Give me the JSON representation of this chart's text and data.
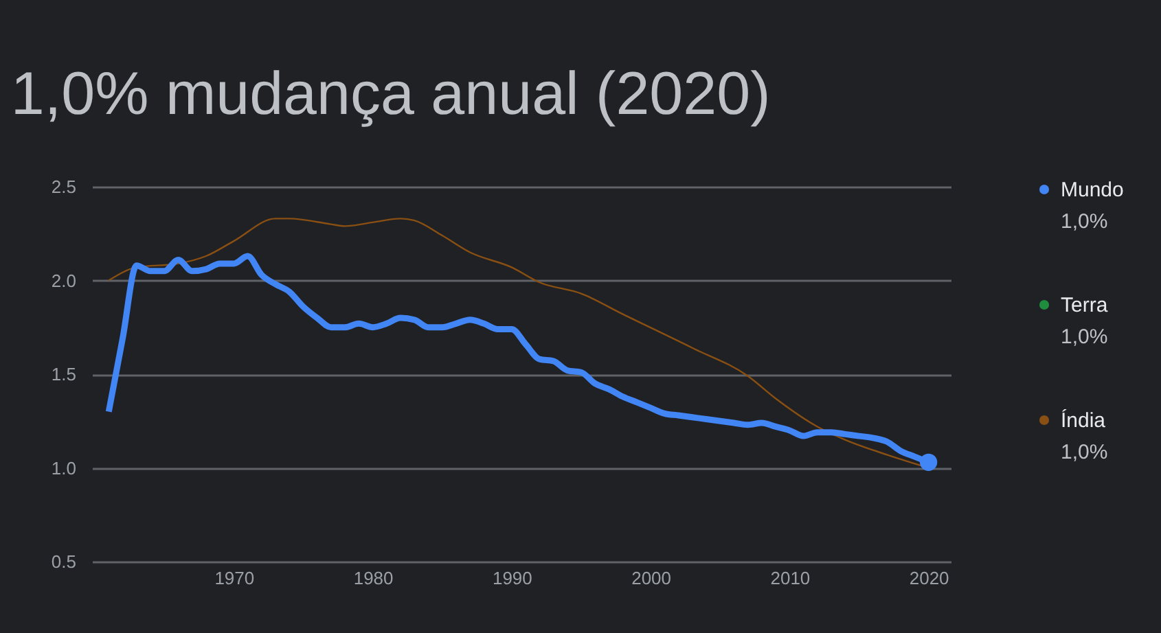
{
  "chart_data": {
    "type": "line",
    "title": "1,0% mudança anual (2020)",
    "x": [
      1961,
      1962,
      1963,
      1964,
      1965,
      1966,
      1967,
      1968,
      1969,
      1970,
      1971,
      1972,
      1973,
      1974,
      1975,
      1976,
      1977,
      1978,
      1979,
      1980,
      1981,
      1982,
      1983,
      1984,
      1985,
      1986,
      1987,
      1988,
      1989,
      1990,
      1991,
      1992,
      1993,
      1994,
      1995,
      1996,
      1997,
      1998,
      1999,
      2000,
      2001,
      2002,
      2003,
      2004,
      2005,
      2006,
      2007,
      2008,
      2009,
      2010,
      2011,
      2012,
      2013,
      2014,
      2015,
      2016,
      2017,
      2018,
      2019,
      2020
    ],
    "series": [
      {
        "name": "Mundo",
        "color": "#4285f4",
        "values": [
          1.3,
          1.69,
          2.08,
          2.05,
          2.05,
          2.11,
          2.05,
          2.06,
          2.09,
          2.09,
          2.13,
          2.03,
          1.98,
          1.94,
          1.86,
          1.8,
          1.75,
          1.75,
          1.77,
          1.75,
          1.77,
          1.8,
          1.79,
          1.75,
          1.75,
          1.77,
          1.79,
          1.77,
          1.74,
          1.74,
          1.66,
          1.58,
          1.57,
          1.52,
          1.51,
          1.45,
          1.42,
          1.38,
          1.35,
          1.32,
          1.29,
          1.28,
          1.27,
          1.26,
          1.25,
          1.24,
          1.23,
          1.24,
          1.22,
          1.2,
          1.17,
          1.19,
          1.19,
          1.18,
          1.17,
          1.16,
          1.14,
          1.09,
          1.06,
          1.03
        ]
      },
      {
        "name": "Terra",
        "color": "#1e8e3e",
        "values": [
          null,
          null,
          null,
          null,
          null,
          null,
          null,
          null,
          null,
          null,
          null,
          null,
          null,
          null,
          null,
          null,
          null,
          null,
          null,
          null,
          null,
          null,
          null,
          null,
          null,
          null,
          null,
          null,
          null,
          null,
          null,
          null,
          null,
          null,
          null,
          null,
          null,
          null,
          null,
          null,
          null,
          null,
          null,
          null,
          null,
          null,
          null,
          null,
          null,
          null,
          null,
          null,
          null,
          null,
          null,
          null,
          null,
          null,
          null,
          null
        ]
      },
      {
        "name": "Índia",
        "color": "#8a4f12",
        "x": [
          1961,
          1963,
          1966,
          1968,
          1970,
          1973,
          1974,
          1977,
          1978,
          1980,
          1982,
          1983,
          1985,
          1987,
          1990,
          1992,
          1995,
          1998,
          2003,
          2007,
          2009,
          2012,
          2014,
          2017,
          2020
        ],
        "values": [
          2.0,
          2.07,
          2.09,
          2.13,
          2.21,
          2.33,
          2.33,
          2.3,
          2.29,
          2.31,
          2.33,
          2.32,
          2.24,
          2.15,
          2.07,
          1.99,
          1.93,
          1.82,
          1.64,
          1.49,
          1.37,
          1.22,
          1.15,
          1.07,
          1.0
        ]
      }
    ],
    "annotations": [
      "1,0%",
      "1,0%",
      "1,0%"
    ],
    "xlim": [
      1959.8,
      2021.6
    ],
    "xticks": [
      1970,
      1980,
      1990,
      2000,
      2010,
      2020
    ],
    "ylim": [
      0.5,
      2.5
    ],
    "yticks": [
      0.5,
      {
        "value": 1,
        "label": "1.0"
      },
      1.5,
      {
        "value": 2,
        "label": "2.0"
      },
      2.5
    ],
    "grid": "y",
    "legend": "right"
  }
}
